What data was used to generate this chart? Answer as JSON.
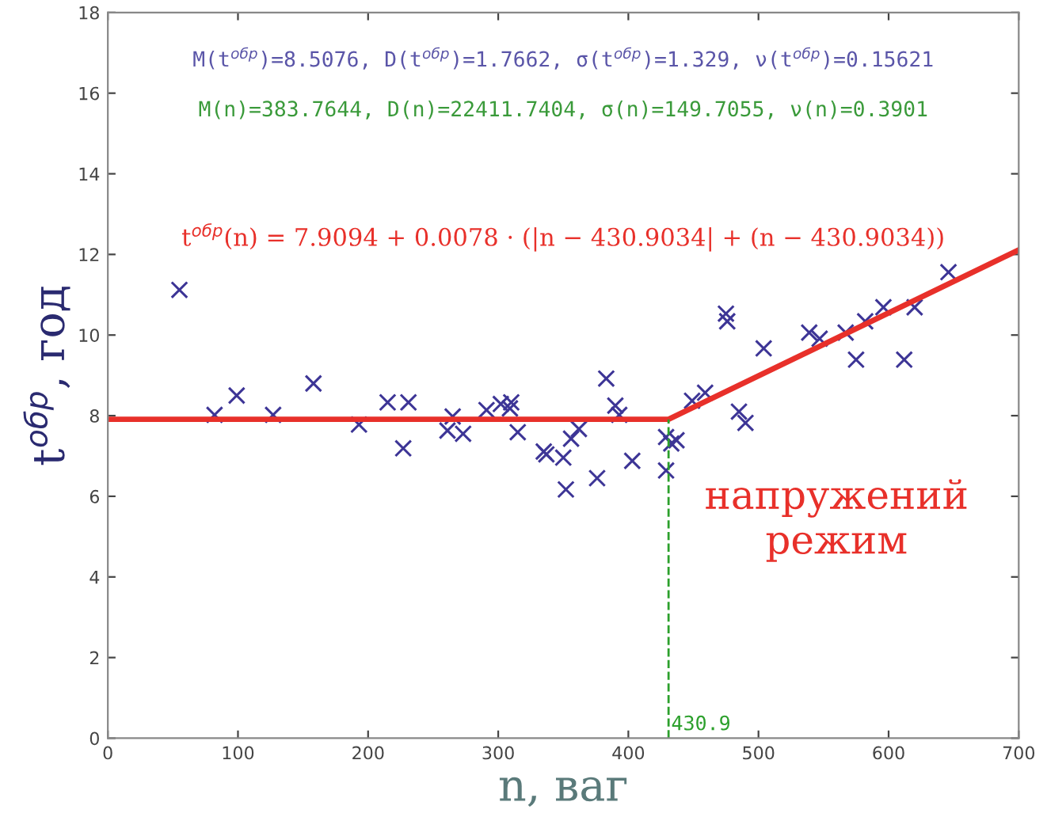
{
  "chart_data": {
    "type": "scatter",
    "xlabel": "n, ваг",
    "ylabel": "t$^{обр}$, год",
    "xlim": [
      0,
      700
    ],
    "xticks": [
      0,
      100,
      200,
      300,
      400,
      500,
      600,
      700
    ],
    "ylim": [
      0,
      18
    ],
    "yticks": [
      0,
      2,
      4,
      6,
      8,
      10,
      12,
      14,
      16,
      18
    ],
    "grid": false,
    "series": [
      {
        "marker": "cross",
        "color": "#3d3596",
        "x": [
          55,
          82,
          99,
          127,
          158,
          193,
          215,
          231,
          227,
          261,
          265,
          273,
          291,
          302,
          310,
          309,
          315,
          335,
          337,
          350,
          352,
          356,
          362,
          376,
          383,
          390,
          393,
          403,
          429,
          433,
          437,
          429,
          449,
          459,
          475,
          476,
          485,
          490,
          504,
          539,
          547,
          567,
          575,
          582,
          596,
          612,
          620,
          646
        ],
        "values": [
          11.12,
          8.02,
          8.5,
          8.02,
          8.8,
          7.78,
          8.33,
          8.33,
          7.19,
          7.63,
          7.98,
          7.55,
          8.14,
          8.29,
          8.33,
          8.18,
          7.59,
          7.11,
          7.04,
          6.96,
          6.17,
          7.43,
          7.67,
          6.45,
          8.92,
          8.25,
          8.02,
          6.88,
          7.47,
          7.31,
          7.39,
          6.64,
          8.37,
          8.57,
          10.53,
          10.34,
          8.1,
          7.82,
          9.67,
          10.06,
          9.91,
          10.06,
          9.39,
          10.34,
          10.69,
          9.39,
          10.69,
          11.56
        ]
      },
      {
        "type": "line",
        "marker": "none",
        "color": "#e8302a",
        "x": [
          0,
          430.9,
          700
        ],
        "values": [
          7.91,
          7.91,
          12.11
        ]
      }
    ],
    "ref_lines": [
      {
        "axis": "x",
        "value": 430.9,
        "label": "430.9",
        "color": "#2ca02c",
        "line_style": "dashed"
      }
    ],
    "annotations": [
      "M(t$^{обр}$)=8.5076, D(t$^{обр}$)=1.7662, σ(t$^{обр}$)=1.329, ν(t$^{обр}$)=0.15621",
      "M(n)=383.7644, D(n)=22411.7404, σ(n)=149.7055, ν(n)=0.3901",
      "t$^{обр}$(n) = 7.9094 + 0.0078 · (|n − 430.9034| + (n − 430.9034))",
      "напружений\nрежим"
    ]
  }
}
